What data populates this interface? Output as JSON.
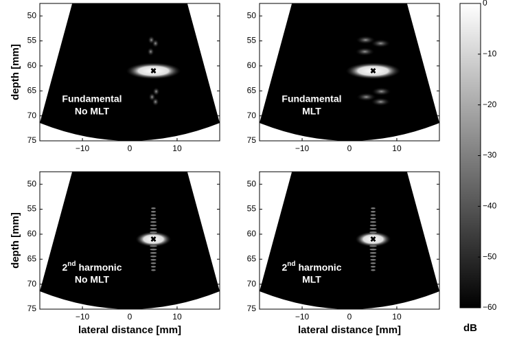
{
  "chart_data": [
    {
      "type": "image",
      "ylabel": "depth [mm]",
      "annotation": [
        "Fundamental",
        "No MLT"
      ],
      "xlim": [
        -19,
        19
      ],
      "xticks": [
        {
          "value": -10,
          "label": "−10"
        },
        0,
        10
      ],
      "ylim": [
        75,
        47.5
      ],
      "yticks": [
        50,
        55,
        60,
        65,
        70,
        75
      ],
      "target": {
        "x": 5,
        "y": 61
      }
    },
    {
      "type": "image",
      "annotation": [
        "Fundamental",
        "MLT"
      ],
      "xlim": [
        -19,
        19
      ],
      "xticks": [
        {
          "value": -10,
          "label": "−10"
        },
        0,
        10
      ],
      "ylim": [
        75,
        47.5
      ],
      "yticks": [
        50,
        55,
        60,
        65,
        70,
        75
      ],
      "target": {
        "x": 5,
        "y": 61
      }
    },
    {
      "type": "image",
      "ylabel": "depth [mm]",
      "xlabel": "lateral distance [mm]",
      "annotation": [
        {
          "base": "2",
          "sup": "nd",
          "rest": "harmonic"
        },
        "No MLT"
      ],
      "xlim": [
        -19,
        19
      ],
      "xticks": [
        {
          "value": -10,
          "label": "−10"
        },
        0,
        10
      ],
      "ylim": [
        75,
        47.5
      ],
      "yticks": [
        50,
        55,
        60,
        65,
        70,
        75
      ],
      "target": {
        "x": 5,
        "y": 61
      }
    },
    {
      "type": "image",
      "xlabel": "lateral distance [mm]",
      "annotation": [
        {
          "base": "2",
          "sup": "nd",
          "rest": "harmonic"
        },
        "MLT"
      ],
      "xlim": [
        -19,
        19
      ],
      "xticks": [
        {
          "value": -10,
          "label": "−10"
        },
        0,
        10
      ],
      "ylim": [
        75,
        47.5
      ],
      "yticks": [
        50,
        55,
        60,
        65,
        70,
        75
      ],
      "target": {
        "x": 5,
        "y": 61
      }
    }
  ],
  "colorbar": {
    "label": "dB",
    "clim": [
      -60,
      0
    ],
    "ticks": [
      0,
      {
        "value": -10,
        "label": "−10"
      },
      {
        "value": -20,
        "label": "−20"
      },
      {
        "value": -30,
        "label": "−30"
      },
      {
        "value": -40,
        "label": "−40"
      },
      {
        "value": -50,
        "label": "−50"
      },
      {
        "value": -60,
        "label": "−60"
      }
    ]
  }
}
